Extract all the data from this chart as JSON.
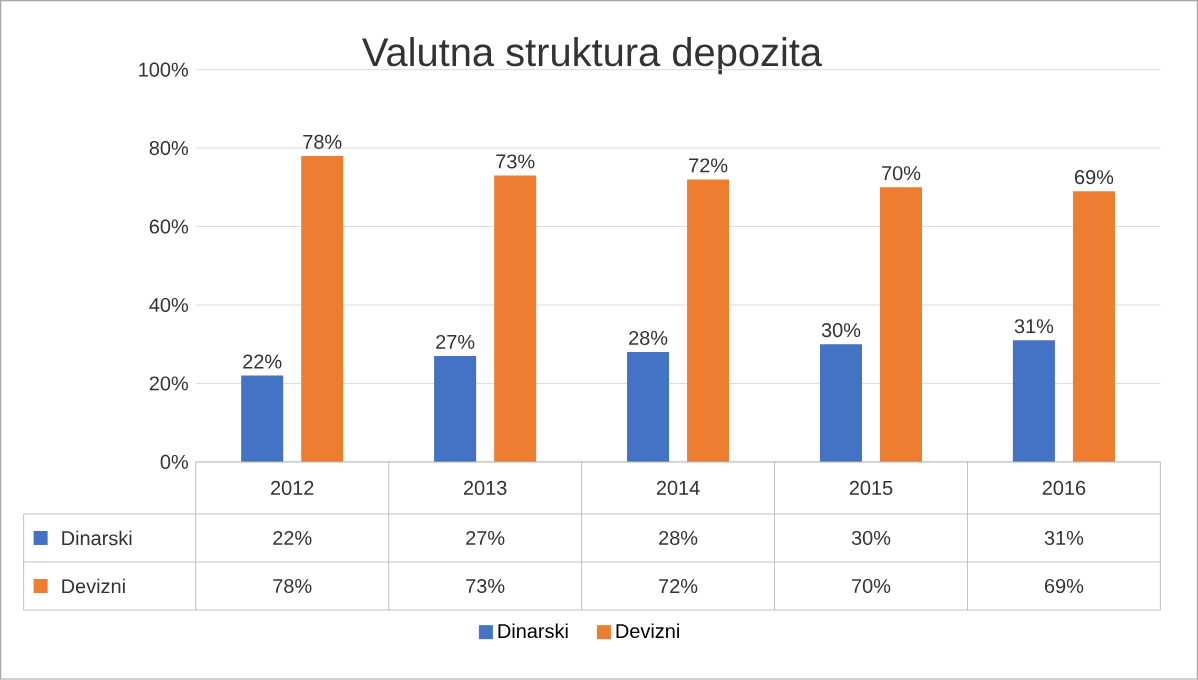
{
  "chart_data": {
    "type": "bar",
    "title": "Valutna struktura depozita",
    "categories": [
      "2012",
      "2013",
      "2014",
      "2015",
      "2016"
    ],
    "series": [
      {
        "name": "Dinarski",
        "color": "#4472c4",
        "values": [
          22,
          27,
          28,
          30,
          31
        ],
        "value_labels": [
          "22%",
          "27%",
          "28%",
          "30%",
          "31%"
        ]
      },
      {
        "name": "Devizni",
        "color": "#ed7d31",
        "values": [
          78,
          73,
          72,
          70,
          69
        ],
        "value_labels": [
          "78%",
          "73%",
          "72%",
          "70%",
          "69%"
        ]
      }
    ],
    "ylim": [
      0,
      100
    ],
    "yticks": [
      {
        "value": 0,
        "label": "0%"
      },
      {
        "value": 20,
        "label": "20%"
      },
      {
        "value": 40,
        "label": "40%"
      },
      {
        "value": 60,
        "label": "60%"
      },
      {
        "value": 80,
        "label": "80%"
      },
      {
        "value": 100,
        "label": "100%"
      }
    ],
    "grid": "y",
    "legend": "bottom"
  }
}
